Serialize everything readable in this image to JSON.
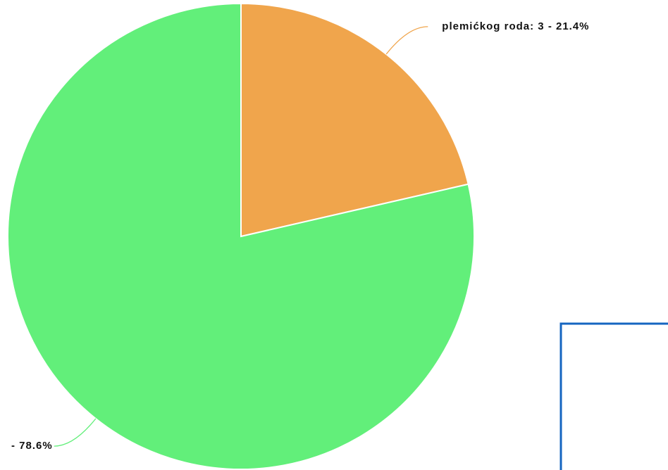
{
  "chart_data": {
    "type": "pie",
    "values": [
      21.4,
      78.6
    ],
    "value_labels": [
      "plemićkog roda: 3 - 21.4%",
      "- 78.6%"
    ],
    "colors": [
      "#f0a54c",
      "#62ef7a"
    ]
  }
}
